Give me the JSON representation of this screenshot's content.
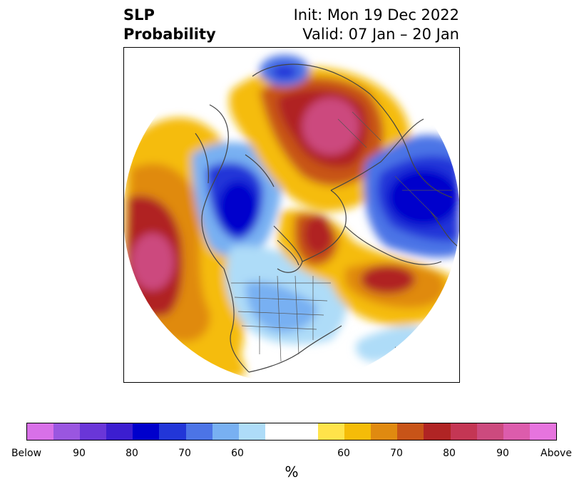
{
  "header": {
    "title_line1": "SLP",
    "title_line2": "Probability",
    "init_label": "Init: Mon 19 Dec 2022",
    "valid_label": "Valid: 07 Jan – 20 Jan"
  },
  "map": {
    "projection": "north polar stereographic",
    "field": "SLP probability"
  },
  "colorbar": {
    "colors": [
      "#d870e8",
      "#9a56e0",
      "#6a36d8",
      "#3c1ed0",
      "#0000cc",
      "#2236d8",
      "#4c74e6",
      "#78b0f2",
      "#aedcf8",
      "#ffffff",
      "#ffe34a",
      "#f5bc08",
      "#e08a10",
      "#c85418",
      "#b02424",
      "#c43654",
      "#cc4a7e",
      "#dc5cac",
      "#e674de"
    ],
    "tick_labels": [
      "Below",
      "90",
      "80",
      "70",
      "60",
      "60",
      "70",
      "80",
      "90",
      "Above"
    ],
    "units": "%"
  }
}
